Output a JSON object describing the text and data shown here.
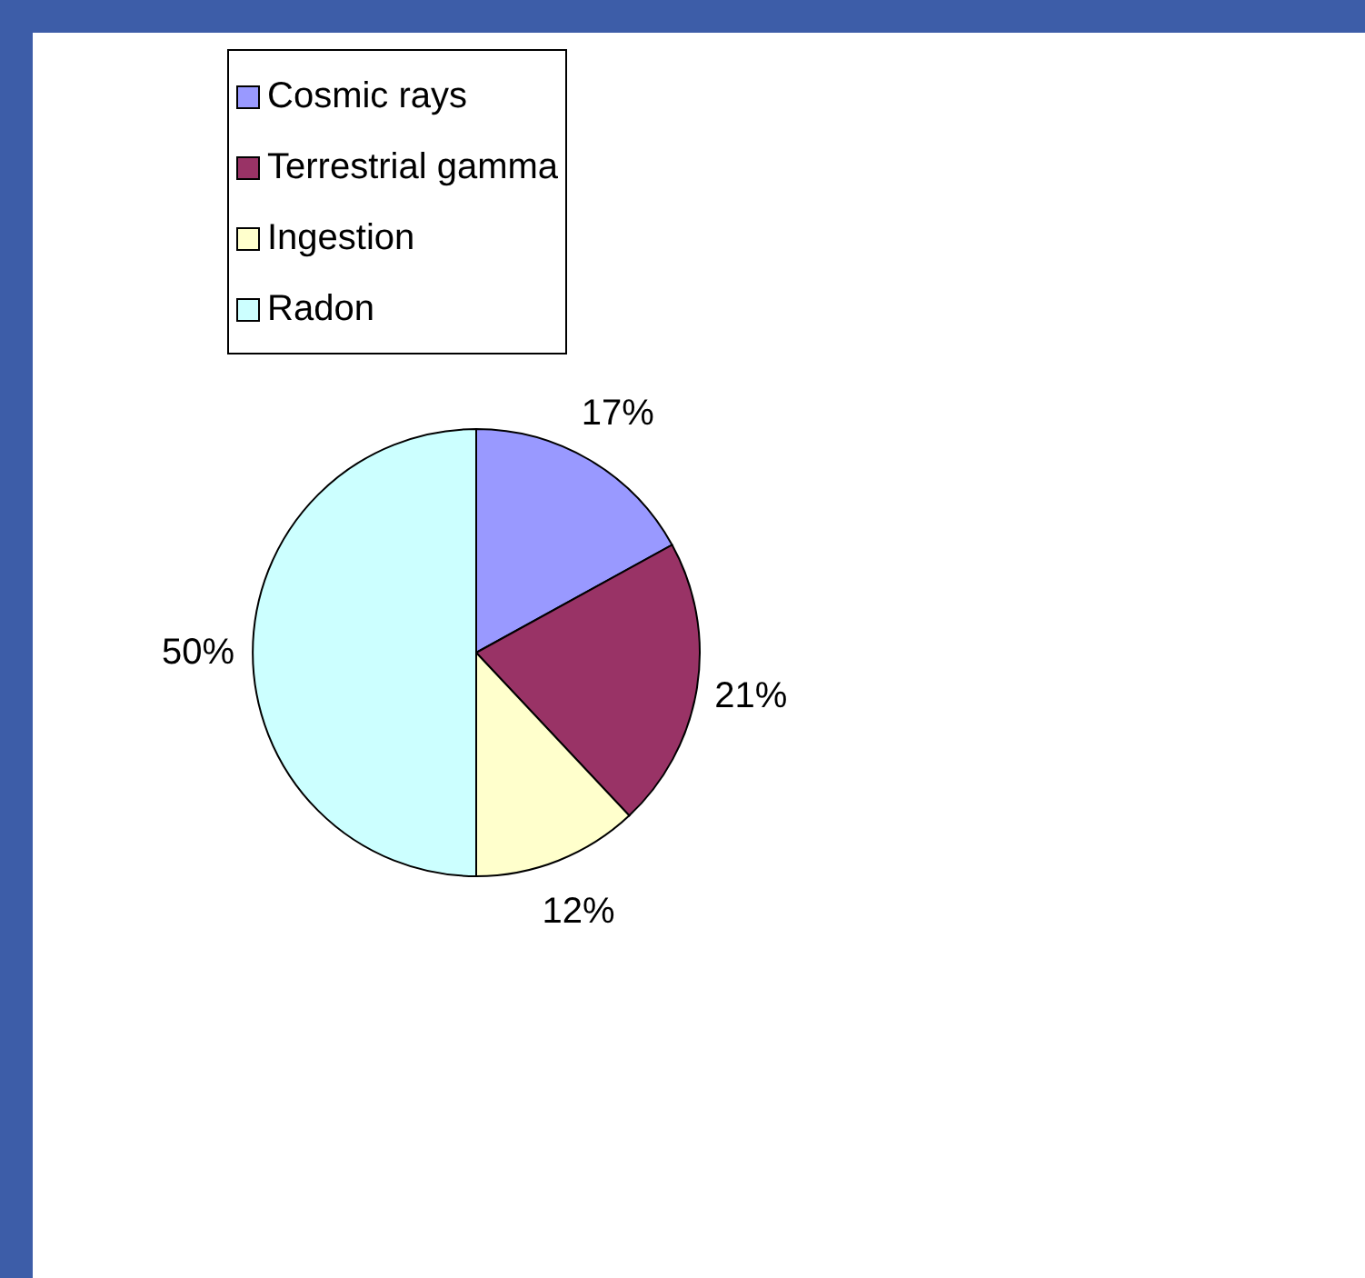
{
  "chart_data": {
    "type": "pie",
    "categories": [
      "Cosmic rays",
      "Terrestrial gamma",
      "Ingestion",
      "Radon"
    ],
    "values": [
      17,
      21,
      12,
      50
    ],
    "colors": [
      "#9999ff",
      "#993366",
      "#ffffcc",
      "#ccffff"
    ],
    "value_labels": [
      "17%",
      "21%",
      "12%",
      "50%"
    ],
    "legend": "top"
  }
}
